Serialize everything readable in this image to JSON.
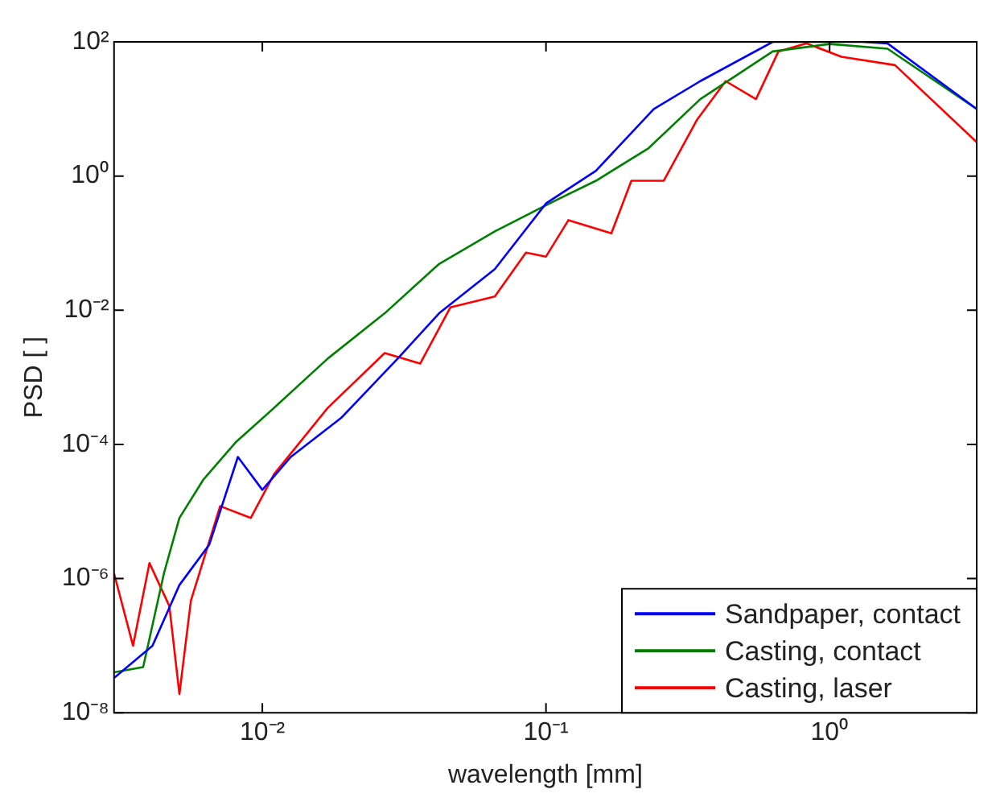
{
  "chart_data": {
    "type": "line",
    "xlabel": "wavelength [mm]",
    "ylabel": "PSD [ ]",
    "log": "xy",
    "grid": false,
    "legend": "bottom right",
    "marker": "none",
    "line_style": "solid",
    "xlim": [
      0.003,
      3.3
    ],
    "xticks": [
      {
        "value": 0.01,
        "label": "10⁻²"
      },
      {
        "value": 0.1,
        "label": "10⁻¹"
      },
      {
        "value": 1,
        "label": "10⁰"
      }
    ],
    "ylim": [
      1e-08,
      100
    ],
    "yticks": [
      {
        "value": 1e-08,
        "label": "10⁻⁸"
      },
      {
        "value": 1e-06,
        "label": "10⁻⁶"
      },
      {
        "value": 0.0001,
        "label": "10⁻⁴"
      },
      {
        "value": 0.01,
        "label": "10⁻²"
      },
      {
        "value": 1,
        "label": "10⁰"
      },
      {
        "value": 100,
        "label": "10²"
      }
    ],
    "series": [
      {
        "name": "Sandpaper, contact",
        "color": "#0000ff",
        "x": [
          0.003,
          0.0041,
          0.0051,
          0.0065,
          0.0082,
          0.01,
          0.0126,
          0.019,
          0.03,
          0.042,
          0.066,
          0.1,
          0.15,
          0.24,
          0.35,
          0.63,
          1.3,
          1.6,
          3.3
        ],
        "values": [
          3.3e-08,
          1e-07,
          8e-07,
          3.2e-06,
          6.5e-05,
          2.1e-05,
          6.5e-05,
          0.00025,
          0.0019,
          0.009,
          0.041,
          0.39,
          1.2,
          10,
          26,
          100,
          100,
          95,
          10
        ]
      },
      {
        "name": "Casting, contact",
        "color": "#008000",
        "x": [
          0.003,
          0.0038,
          0.0045,
          0.0051,
          0.0062,
          0.0081,
          0.011,
          0.017,
          0.027,
          0.042,
          0.066,
          0.11,
          0.15,
          0.23,
          0.35,
          0.63,
          1,
          1.6,
          3.3
        ],
        "values": [
          4e-08,
          4.8e-08,
          1.2e-06,
          8e-06,
          3e-05,
          0.00011,
          0.00035,
          0.0019,
          0.009,
          0.049,
          0.15,
          0.45,
          0.85,
          2.6,
          14,
          72,
          93,
          79,
          10
        ]
      },
      {
        "name": "Casting, laser",
        "color": "#ff0000",
        "x": [
          0.003,
          0.0035,
          0.004,
          0.0047,
          0.0051,
          0.0056,
          0.0071,
          0.0091,
          0.011,
          0.017,
          0.027,
          0.036,
          0.046,
          0.066,
          0.085,
          0.1,
          0.12,
          0.17,
          0.2,
          0.26,
          0.34,
          0.43,
          0.55,
          0.66,
          0.83,
          1.1,
          1.7,
          3.3
        ],
        "values": [
          1.2e-06,
          1e-07,
          1.7e-06,
          3.9e-07,
          1.9e-08,
          4.7e-07,
          1.2e-05,
          8e-06,
          3.6e-05,
          0.00035,
          0.0023,
          0.0016,
          0.011,
          0.016,
          0.072,
          0.063,
          0.22,
          0.14,
          0.85,
          0.85,
          6.8,
          26,
          14,
          72,
          95,
          60,
          45,
          3.2
        ]
      }
    ]
  }
}
